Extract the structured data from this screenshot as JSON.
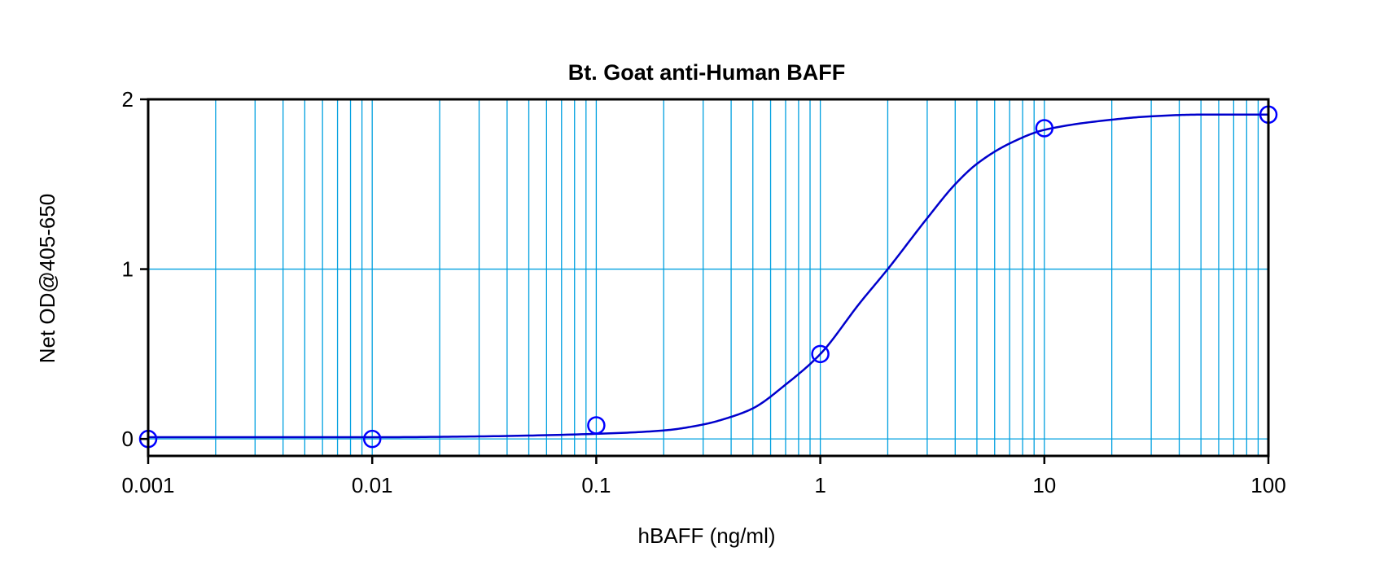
{
  "chart_data": {
    "type": "scatter",
    "title": "Bt. Goat anti-Human BAFF",
    "xlabel": "hBAFF (ng/ml)",
    "ylabel": "Net OD@405-650",
    "x_scale": "log",
    "xlim": [
      0.001,
      100
    ],
    "ylim": [
      -0.1,
      2
    ],
    "x_ticks": [
      0.001,
      0.01,
      0.1,
      1,
      10,
      100
    ],
    "x_tick_labels": [
      "0.001",
      "0.01",
      "0.1",
      "1",
      "10",
      "100"
    ],
    "y_ticks": [
      0,
      1,
      2
    ],
    "y_tick_labels": [
      "0",
      "1",
      "2"
    ],
    "grid": true,
    "legend": "none",
    "series": [
      {
        "marker": "open-circle",
        "x": [
          0.001,
          0.01,
          0.1,
          1,
          10,
          100
        ],
        "y": [
          0.0,
          0.0,
          0.08,
          0.5,
          1.83,
          1.91
        ]
      }
    ],
    "fit_curve": {
      "type": "4-parameter logistic",
      "x": [
        0.001,
        0.003,
        0.01,
        0.03,
        0.1,
        0.2,
        0.3,
        0.4,
        0.5,
        0.7,
        1,
        1.5,
        2,
        3,
        4,
        5,
        7,
        10,
        20,
        30,
        50,
        100
      ],
      "y": [
        0.01,
        0.01,
        0.01,
        0.015,
        0.03,
        0.05,
        0.085,
        0.13,
        0.18,
        0.32,
        0.5,
        0.8,
        1.0,
        1.3,
        1.5,
        1.62,
        1.74,
        1.82,
        1.88,
        1.9,
        1.91,
        1.91
      ]
    },
    "colors": {
      "markers": "#0000ff",
      "curve": "#0000cc",
      "grid": "#00a0e0",
      "frame": "#000000"
    }
  }
}
